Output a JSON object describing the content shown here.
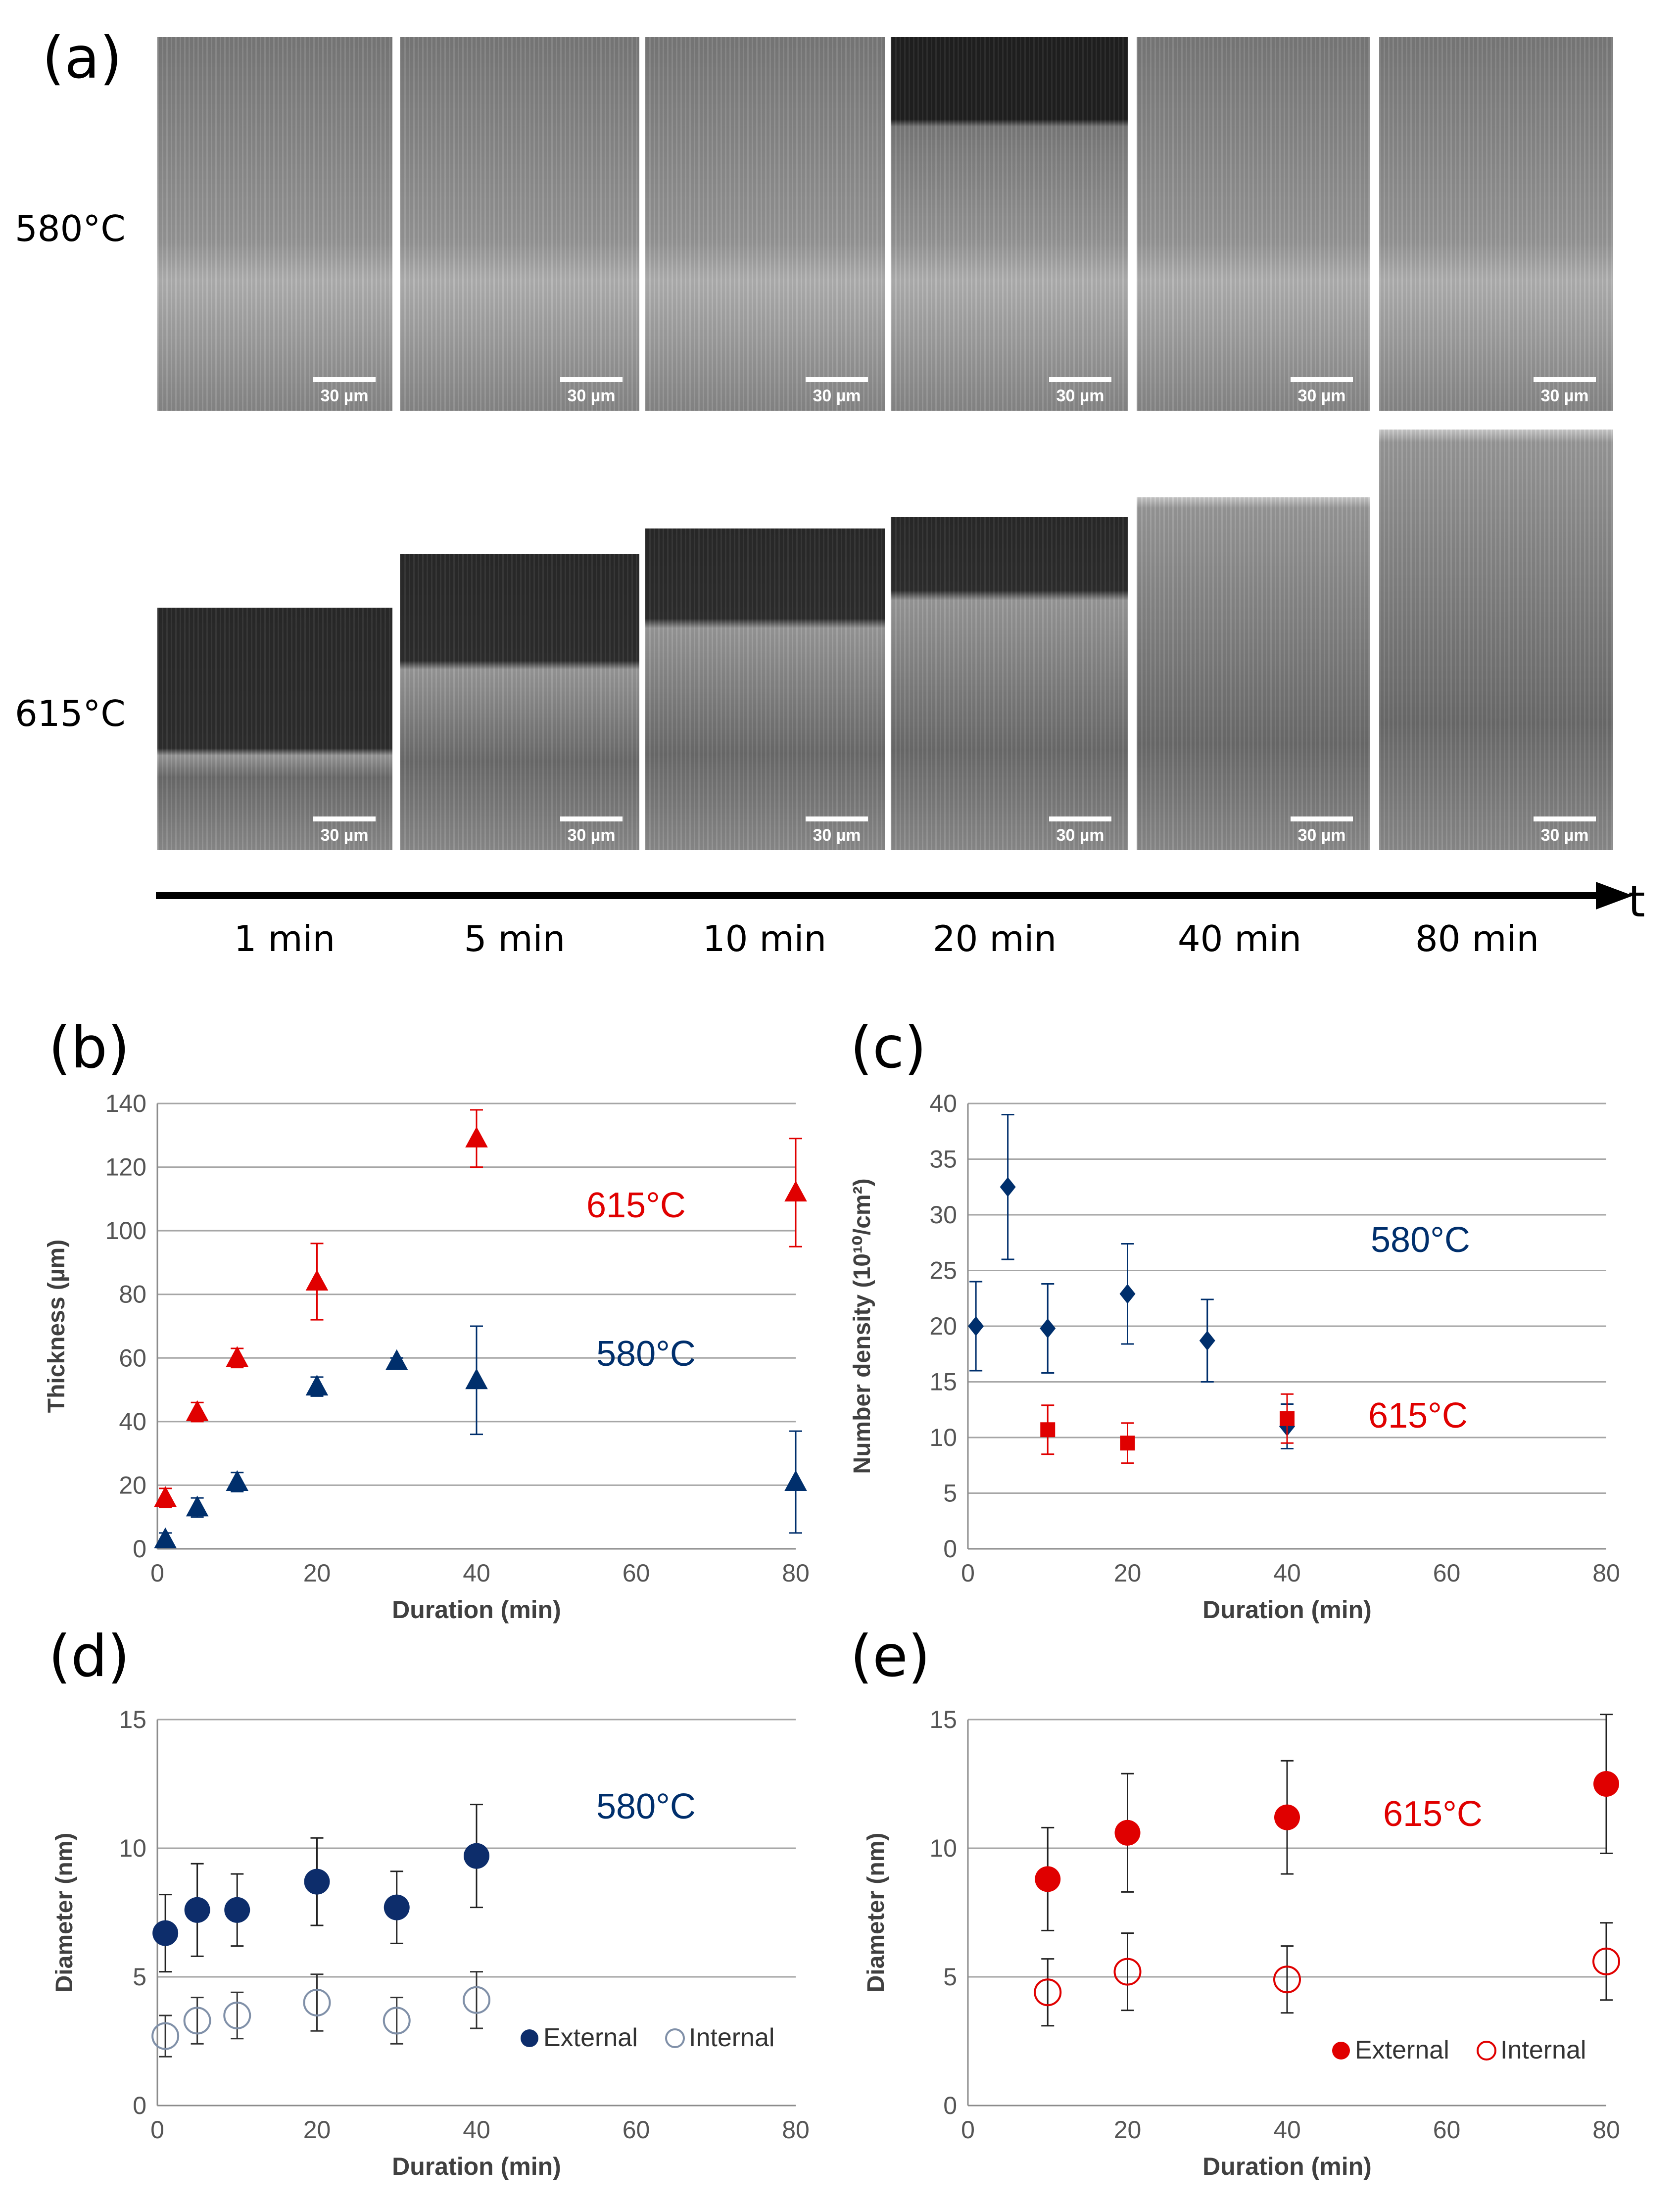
{
  "panels": {
    "a": "(a)",
    "b": "(b)",
    "c": "(c)",
    "d": "(d)",
    "e": "(e)"
  },
  "sem": {
    "row_labels": [
      "580°C",
      "615°C"
    ],
    "time_labels": [
      "1 min",
      "5 min",
      "10 min",
      "20 min",
      "40 min",
      "80 min"
    ],
    "axis_label": "t",
    "scale_bar": "30 µm"
  },
  "chart_data": [
    {
      "id": "b",
      "type": "scatter",
      "xlabel": "Duration (min)",
      "ylabel": "Thickness (µm)",
      "xlim": [
        0,
        80
      ],
      "ylim": [
        0,
        140
      ],
      "xticks": [
        0,
        20,
        40,
        60,
        80
      ],
      "yticks": [
        0,
        20,
        40,
        60,
        80,
        100,
        120,
        140
      ],
      "grid": true,
      "annotations": [
        {
          "text": "615°C",
          "color": "#e00000"
        },
        {
          "text": "580°C",
          "color": "#002f6c"
        }
      ],
      "series": [
        {
          "name": "615°C",
          "color": "#e00000",
          "marker": "triangle",
          "x": [
            1,
            5,
            10,
            20,
            40,
            80
          ],
          "y": [
            16,
            43,
            60,
            84,
            129,
            112
          ],
          "err": [
            3,
            3,
            3,
            12,
            9,
            17
          ]
        },
        {
          "name": "580°C",
          "color": "#002f6c",
          "marker": "triangle",
          "x": [
            1,
            5,
            10,
            20,
            30,
            40,
            80
          ],
          "y": [
            3,
            13,
            21,
            51,
            59,
            53,
            21
          ],
          "err": [
            2,
            3,
            3,
            3,
            1,
            17,
            16
          ]
        }
      ]
    },
    {
      "id": "c",
      "type": "scatter",
      "xlabel": "Duration (min)",
      "ylabel": "Number density (10¹⁰/cm²)",
      "xlim": [
        0,
        80
      ],
      "ylim": [
        0,
        40
      ],
      "xticks": [
        0,
        20,
        40,
        60,
        80
      ],
      "yticks": [
        0,
        5,
        10,
        15,
        20,
        25,
        30,
        35,
        40
      ],
      "grid": true,
      "annotations": [
        {
          "text": "580°C",
          "color": "#002f6c"
        },
        {
          "text": "615°C",
          "color": "#e00000"
        }
      ],
      "series": [
        {
          "name": "580°C",
          "color": "#002f6c",
          "marker": "diamond",
          "x": [
            1,
            5,
            10,
            20,
            30,
            40
          ],
          "y": [
            20,
            32.5,
            19.8,
            22.9,
            18.7,
            11
          ],
          "err": [
            4,
            6.5,
            4,
            4.5,
            3.7,
            2
          ]
        },
        {
          "name": "615°C",
          "color": "#e00000",
          "marker": "square",
          "x": [
            10,
            20,
            40
          ],
          "y": [
            10.7,
            9.5,
            11.7
          ],
          "err": [
            2.2,
            1.8,
            2.2
          ]
        }
      ]
    },
    {
      "id": "d",
      "type": "scatter",
      "xlabel": "Duration (min)",
      "ylabel": "Diameter (nm)",
      "xlim": [
        0,
        80
      ],
      "ylim": [
        0,
        15
      ],
      "xticks": [
        0,
        20,
        40,
        60,
        80
      ],
      "yticks": [
        0,
        5,
        10,
        15
      ],
      "grid": true,
      "annotations": [
        {
          "text": "580°C",
          "color": "#002f6c"
        }
      ],
      "legend": [
        "External",
        "Internal"
      ],
      "series": [
        {
          "name": "External",
          "color": "#0d2d6b",
          "marker": "circle-filled",
          "x": [
            1,
            5,
            10,
            20,
            30,
            40
          ],
          "y": [
            6.7,
            7.6,
            7.6,
            8.7,
            7.7,
            9.7
          ],
          "err": [
            1.5,
            1.8,
            1.4,
            1.7,
            1.4,
            2
          ]
        },
        {
          "name": "Internal",
          "color": "#8090a8",
          "marker": "circle-open",
          "x": [
            1,
            5,
            10,
            20,
            30,
            40
          ],
          "y": [
            2.7,
            3.3,
            3.5,
            4,
            3.3,
            4.1
          ],
          "err": [
            0.8,
            0.9,
            0.9,
            1.1,
            0.9,
            1.1
          ]
        }
      ]
    },
    {
      "id": "e",
      "type": "scatter",
      "xlabel": "Duration (min)",
      "ylabel": "Diameter (nm)",
      "xlim": [
        0,
        80
      ],
      "ylim": [
        0,
        15
      ],
      "xticks": [
        0,
        20,
        40,
        60,
        80
      ],
      "yticks": [
        0,
        5,
        10,
        15
      ],
      "grid": true,
      "annotations": [
        {
          "text": "615°C",
          "color": "#e00000"
        }
      ],
      "legend": [
        "External",
        "Internal"
      ],
      "series": [
        {
          "name": "External",
          "color": "#e00000",
          "marker": "circle-filled",
          "x": [
            10,
            20,
            40,
            80
          ],
          "y": [
            8.8,
            10.6,
            11.2,
            12.5
          ],
          "err": [
            2,
            2.3,
            2.2,
            2.7
          ]
        },
        {
          "name": "Internal",
          "color": "#e00000",
          "marker": "circle-open",
          "x": [
            10,
            20,
            40,
            80
          ],
          "y": [
            4.4,
            5.2,
            4.9,
            5.6
          ],
          "err": [
            1.3,
            1.5,
            1.3,
            1.5
          ]
        }
      ]
    }
  ]
}
